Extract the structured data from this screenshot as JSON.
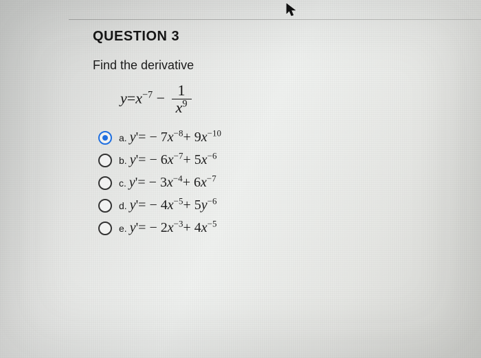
{
  "title": "QUESTION 3",
  "instruction": "Find the derivative",
  "equation": {
    "lhs_var": "y",
    "eq": "=",
    "term1_var": "x",
    "term1_exp": "−7",
    "minus": "−",
    "frac_num": "1",
    "frac_den_var": "x",
    "frac_den_exp": "9"
  },
  "options": [
    {
      "letter": "a.",
      "selected": true,
      "lhs_var": "y",
      "prime": "'",
      "rel": "= −",
      "c1": "7",
      "v1": "x",
      "e1": "−8",
      "op": "+",
      "c2": "9",
      "v2": "x",
      "e2": "−10"
    },
    {
      "letter": "b.",
      "selected": false,
      "lhs_var": "y",
      "prime": "'",
      "rel": "= −",
      "c1": "6",
      "v1": "x",
      "e1": "−7",
      "op": "+",
      "c2": "5",
      "v2": "x",
      "e2": "−6"
    },
    {
      "letter": "c.",
      "selected": false,
      "lhs_var": "y",
      "prime": "'",
      "rel": "= −",
      "c1": "3",
      "v1": "x",
      "e1": "−4",
      "op": "+",
      "c2": "6",
      "v2": "x",
      "e2": "−7"
    },
    {
      "letter": "d.",
      "selected": false,
      "lhs_var": "y",
      "prime": "'",
      "rel": "= −",
      "c1": "4",
      "v1": "x",
      "e1": "−5",
      "op": "+",
      "c2": "5",
      "v2": "y",
      "e2": "−6"
    },
    {
      "letter": "e.",
      "selected": false,
      "lhs_var": "y",
      "prime": "'",
      "rel": "= −",
      "c1": "2",
      "v1": "x",
      "e1": "−3",
      "op": "+",
      "c2": "4",
      "v2": "x",
      "e2": "−5"
    }
  ],
  "colors": {
    "text": "#1c1c1c",
    "accent": "#1f6fe0",
    "rule": "#8e8f8d"
  }
}
